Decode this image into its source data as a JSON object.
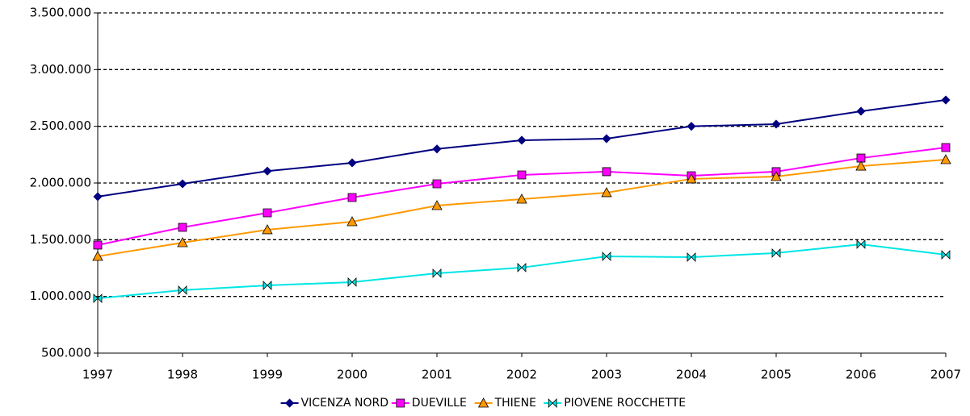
{
  "chart_data": {
    "type": "line",
    "x": [
      1997,
      1998,
      1999,
      2000,
      2001,
      2002,
      2003,
      2004,
      2005,
      2006,
      2007
    ],
    "xlim": [
      1997,
      2007
    ],
    "xticks": [
      1997,
      1998,
      1999,
      2000,
      2001,
      2002,
      2003,
      2004,
      2005,
      2006,
      2007
    ],
    "ylim": [
      500000,
      3500000
    ],
    "yticks": [
      {
        "value": 500000,
        "label": "500.000"
      },
      {
        "value": 1000000,
        "label": "1.000.000"
      },
      {
        "value": 1500000,
        "label": "1.500.000"
      },
      {
        "value": 2000000,
        "label": "2.000.000"
      },
      {
        "value": 2500000,
        "label": "2.500.000"
      },
      {
        "value": 3000000,
        "label": "3.000.000"
      },
      {
        "value": 3500000,
        "label": "3.500.000"
      }
    ],
    "grid": true,
    "legend": "bottom",
    "series": [
      {
        "name": "VICENZA NORD",
        "color": "#000080",
        "marker": "diamond",
        "values": [
          1880000,
          1993000,
          2105000,
          2178000,
          2300000,
          2377000,
          2391000,
          2500000,
          2519000,
          2633000,
          2732000
        ]
      },
      {
        "name": "DUEVILLE",
        "color": "#ff00ff",
        "marker": "square",
        "values": [
          1453000,
          1609000,
          1737000,
          1872000,
          1993000,
          2071000,
          2100000,
          2064000,
          2100000,
          2220000,
          2313000
        ]
      },
      {
        "name": "THIENE",
        "color": "#ff9900",
        "marker": "triangle",
        "values": [
          1353000,
          1474000,
          1588000,
          1659000,
          1801000,
          1858000,
          1915000,
          2036000,
          2057000,
          2149000,
          2206000
        ]
      },
      {
        "name": "PIOVENE ROCCHETTE",
        "color": "#00e5e5",
        "marker": "bowtie",
        "values": [
          983000,
          1055000,
          1097000,
          1126000,
          1204000,
          1254000,
          1353000,
          1346000,
          1382000,
          1460000,
          1367000
        ]
      }
    ]
  }
}
